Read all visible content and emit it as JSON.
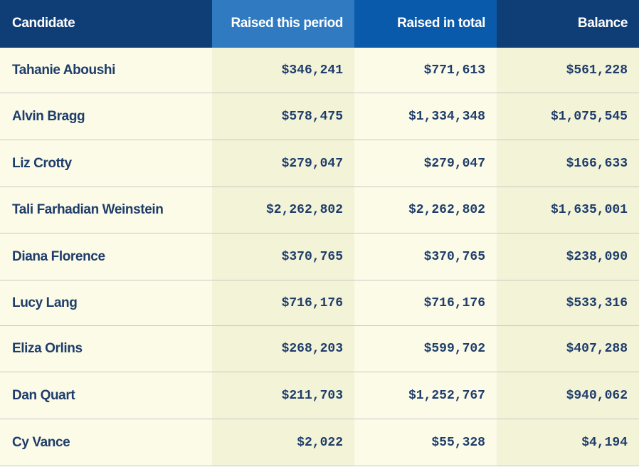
{
  "headers": {
    "candidate": "Candidate",
    "raised_period": "Raised this period",
    "raised_total": "Raised in total",
    "balance": "Balance"
  },
  "rows": [
    {
      "candidate": "Tahanie Aboushi",
      "raised_period": "$346,241",
      "raised_total": "$771,613",
      "balance": "$561,228"
    },
    {
      "candidate": "Alvin Bragg",
      "raised_period": "$578,475",
      "raised_total": "$1,334,348",
      "balance": "$1,075,545"
    },
    {
      "candidate": "Liz Crotty",
      "raised_period": "$279,047",
      "raised_total": "$279,047",
      "balance": "$166,633"
    },
    {
      "candidate": "Tali Farhadian Weinstein",
      "raised_period": "$2,262,802",
      "raised_total": "$2,262,802",
      "balance": "$1,635,001"
    },
    {
      "candidate": "Diana Florence",
      "raised_period": "$370,765",
      "raised_total": "$370,765",
      "balance": "$238,090"
    },
    {
      "candidate": "Lucy Lang",
      "raised_period": "$716,176",
      "raised_total": "$716,176",
      "balance": "$533,316"
    },
    {
      "candidate": "Eliza Orlins",
      "raised_period": "$268,203",
      "raised_total": "$599,702",
      "balance": "$407,288"
    },
    {
      "candidate": "Dan Quart",
      "raised_period": "$211,703",
      "raised_total": "$1,252,767",
      "balance": "$940,062"
    },
    {
      "candidate": "Cy Vance",
      "raised_period": "$2,022",
      "raised_total": "$55,328",
      "balance": "$4,194"
    }
  ],
  "colors": {
    "header_dark": "#0f3e77",
    "header_period": "#2f7ac1",
    "header_total": "#0a5aab",
    "cell_light": "#fbfbe7",
    "cell_tint": "#f3f3d8",
    "text": "#1f3d6b"
  }
}
